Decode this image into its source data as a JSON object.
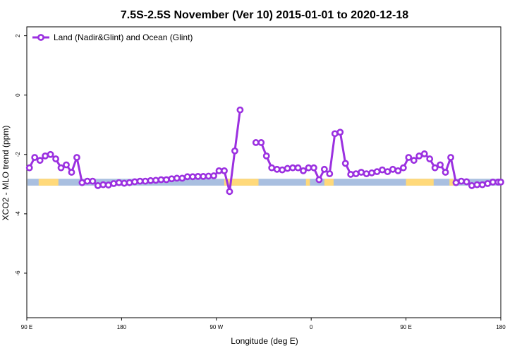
{
  "chart_data": {
    "type": "line",
    "title": "7.5S-2.5S November (Ver 10)   2015-01-01 to 2020-12-18",
    "xlabel": "Longitude (deg E)",
    "ylabel": "XCO2 - MLO trend (ppm)",
    "xlim": [
      90,
      450
    ],
    "ylim": [
      -7.5,
      2.3
    ],
    "x_ticks": [
      {
        "value": 90,
        "label": "90 E"
      },
      {
        "value": 162,
        "label": "180"
      },
      {
        "value": 234,
        "label": "90 W"
      },
      {
        "value": 306,
        "label": "0"
      },
      {
        "value": 378,
        "label": "90 E"
      },
      {
        "value": 450,
        "label": "180"
      }
    ],
    "y_ticks": [
      {
        "value": 2,
        "label": "2"
      },
      {
        "value": 0,
        "label": "0"
      },
      {
        "value": -2,
        "label": "-2"
      },
      {
        "value": -4,
        "label": "-4"
      },
      {
        "value": -6,
        "label": "-6"
      }
    ],
    "legend": {
      "position": "top-left"
    },
    "series": [
      {
        "name": "Land (Nadir&Glint) and Ocean (Glint)",
        "color": "#9b30e0",
        "x": [
          92,
          96,
          100,
          104,
          108,
          112,
          116,
          120,
          124,
          128,
          132,
          136,
          140,
          144,
          148,
          152,
          156,
          160,
          164,
          168,
          172,
          176,
          180,
          184,
          188,
          192,
          196,
          200,
          204,
          208,
          212,
          216,
          220,
          224,
          228,
          232,
          236,
          240,
          244,
          248,
          252,
          256,
          null,
          264,
          268,
          272,
          276,
          280,
          284,
          288,
          292,
          296,
          300,
          304,
          308,
          312,
          316,
          320,
          324,
          328,
          332,
          336,
          340,
          344,
          348,
          352,
          356,
          360,
          364,
          368,
          372,
          376,
          380,
          384,
          388,
          392,
          396,
          400,
          404,
          408,
          412,
          416,
          420,
          424,
          428,
          432,
          436,
          440,
          444,
          448,
          450
        ],
        "y": [
          -2.45,
          -2.1,
          -2.2,
          -2.05,
          -2.0,
          -2.15,
          -2.45,
          -2.35,
          -2.6,
          -2.1,
          -2.95,
          -2.9,
          -2.9,
          -3.05,
          -3.02,
          -3.03,
          -2.98,
          -2.95,
          -2.97,
          -2.95,
          -2.92,
          -2.9,
          -2.9,
          -2.88,
          -2.87,
          -2.85,
          -2.85,
          -2.82,
          -2.8,
          -2.8,
          -2.75,
          -2.75,
          -2.74,
          -2.74,
          -2.73,
          -2.72,
          -2.55,
          -2.55,
          -3.25,
          -1.88,
          -0.5,
          null,
          null,
          -1.6,
          -1.6,
          -2.05,
          -2.45,
          -2.5,
          -2.52,
          -2.47,
          -2.45,
          -2.45,
          -2.55,
          -2.45,
          -2.45,
          -2.85,
          -2.5,
          -2.65,
          -1.3,
          -1.25,
          -2.3,
          -2.67,
          -2.65,
          -2.6,
          -2.65,
          -2.62,
          -2.58,
          -2.52,
          -2.58,
          -2.5,
          -2.55,
          -2.45,
          -2.1,
          -2.2,
          -2.05,
          -1.98,
          -2.15,
          -2.45,
          -2.35,
          -2.6,
          -2.1,
          -2.95,
          -2.9,
          -2.92,
          -3.05,
          -3.02,
          -3.02,
          -2.98,
          -2.93,
          -2.93,
          -2.93
        ]
      }
    ],
    "surface_band": {
      "y_range": [
        -2.82,
        -3.05
      ],
      "land_color": "#ffd97a",
      "ocean_color": "#a9bfe0",
      "land_segments": [
        [
          99,
          114
        ],
        [
          240,
          266
        ],
        [
          302,
          305
        ],
        [
          316,
          323
        ],
        [
          378,
          399
        ],
        [
          411,
          414
        ]
      ],
      "ocean_color_name": "ocean",
      "land_color_name": "land"
    }
  }
}
